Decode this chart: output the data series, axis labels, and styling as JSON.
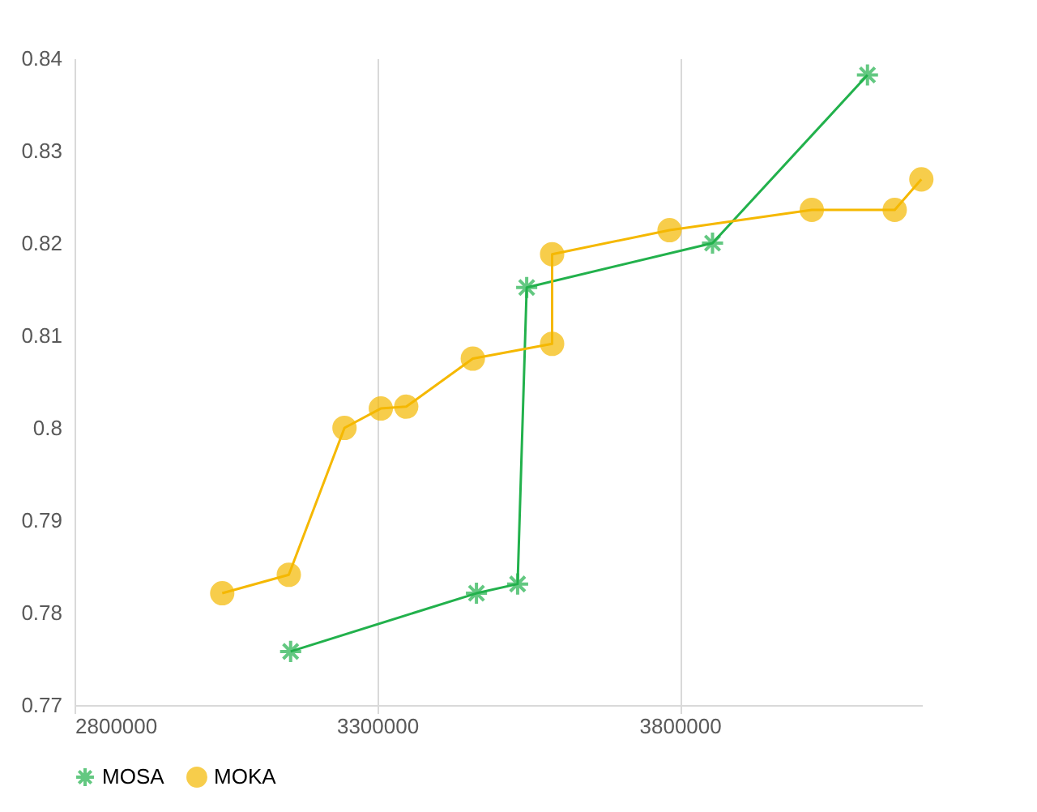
{
  "chart_data": {
    "type": "line",
    "xlim": [
      2800000,
      4200000
    ],
    "xticks": [
      2800000,
      3300000,
      3800000
    ],
    "ylim": [
      0.77,
      0.84
    ],
    "yticks": [
      0.77,
      0.78,
      0.79,
      0.8,
      0.81,
      0.82,
      0.83,
      0.84
    ],
    "grid": "x",
    "legend": "bottom",
    "series": [
      {
        "name": "MOSA",
        "color": "#22b14c",
        "marker": "cross",
        "x": [
          3157000,
          3464000,
          3532000,
          3547000,
          3854000,
          4110000
        ],
        "values": [
          0.7758,
          0.7821,
          0.7831,
          0.8152,
          0.82,
          0.8382
        ]
      },
      {
        "name": "MOKA",
        "color": "#f5b800",
        "marker": "circle",
        "x": [
          3044000,
          3154000,
          3246000,
          3306000,
          3348000,
          3458000,
          3589000,
          3589000,
          3783000,
          4018000,
          4155000,
          4199000
        ],
        "values": [
          0.7821,
          0.7841,
          0.8,
          0.8021,
          0.8023,
          0.8075,
          0.8091,
          0.8188,
          0.8214,
          0.8236,
          0.8236,
          0.8269
        ]
      }
    ]
  }
}
